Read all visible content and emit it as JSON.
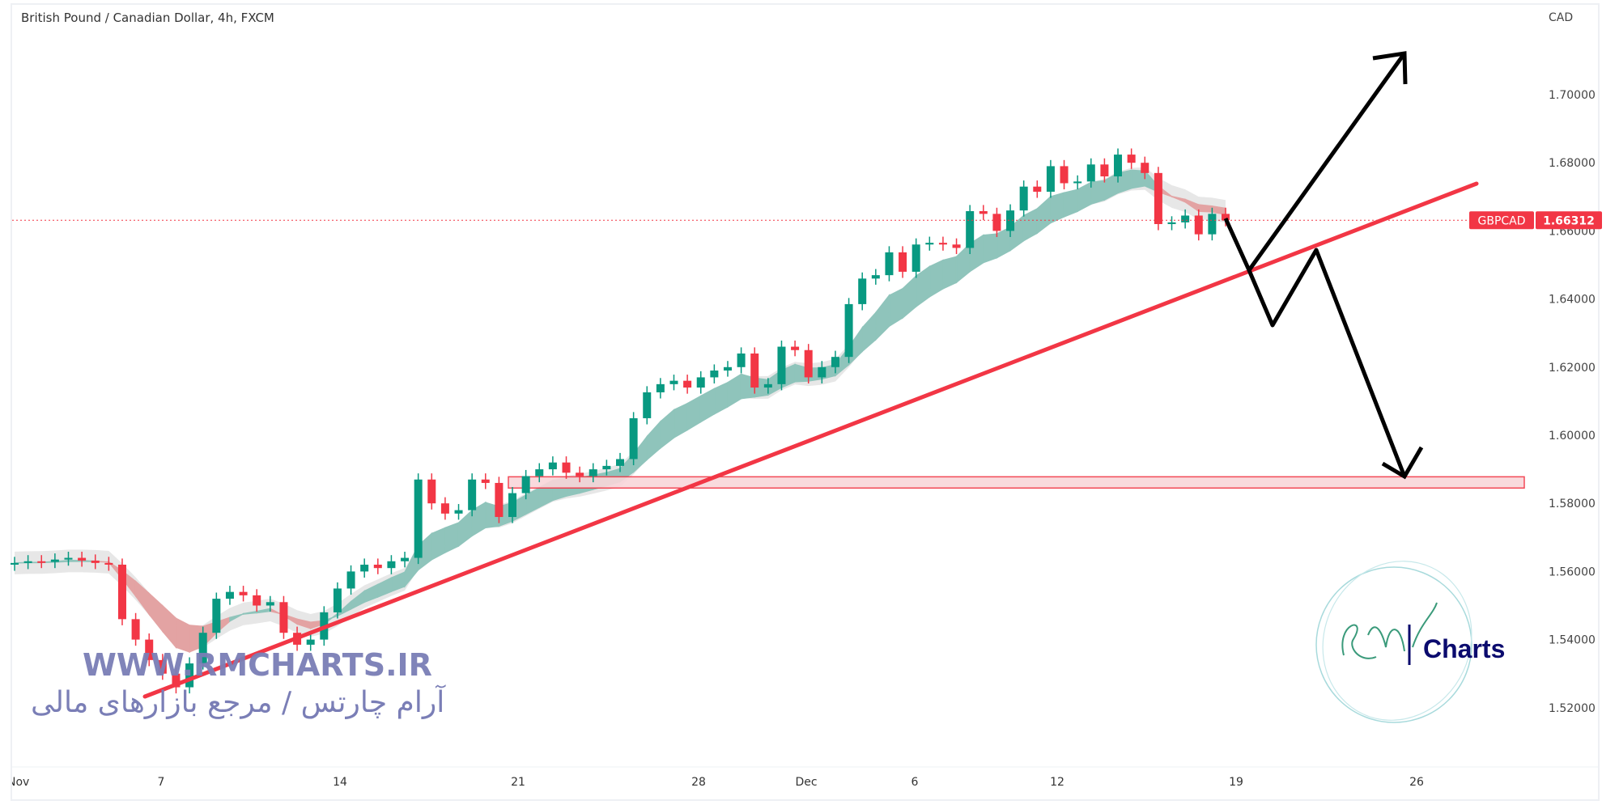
{
  "header": {
    "title": "British Pound / Canadian Dollar, 4h, FXCM"
  },
  "watermark": {
    "url": "WWW.RMCHARTS.IR",
    "persian": "آرام چارتس / مرجع بازارهای مالی",
    "logo_text": "Charts",
    "logo_script": "RM"
  },
  "colors": {
    "up": "#089981",
    "down": "#f23645",
    "trendline": "#f23645",
    "zone_fill": "#f9d6da",
    "arrows": "#000000",
    "band_up": "#8fc4bb",
    "band_down": "#e3a3a3",
    "band_grey": "#e4e4e4"
  },
  "chart_data": {
    "type": "candlestick",
    "symbol": "GBPCAD",
    "currency": "CAD",
    "last_price": "1.66312",
    "y_ticks": [
      "1.70000",
      "1.68000",
      "1.66000",
      "1.64000",
      "1.62000",
      "1.60000",
      "1.58000",
      "1.56000",
      "1.54000",
      "1.52000"
    ],
    "ylim": [
      1.505,
      1.724
    ],
    "x_ticks": [
      "Nov",
      "7",
      "14",
      "21",
      "28",
      "Dec",
      "6",
      "12",
      "19",
      "26"
    ],
    "closes": [
      1.5625,
      1.563,
      1.5628,
      1.5635,
      1.564,
      1.5632,
      1.5625,
      1.562,
      1.546,
      1.54,
      1.534,
      1.53,
      1.526,
      1.533,
      1.542,
      1.552,
      1.554,
      1.553,
      1.55,
      1.551,
      1.542,
      1.5385,
      1.54,
      1.548,
      1.555,
      1.56,
      1.562,
      1.561,
      1.563,
      1.564,
      1.587,
      1.58,
      1.577,
      1.578,
      1.587,
      1.586,
      1.576,
      1.583,
      1.588,
      1.59,
      1.592,
      1.589,
      1.588,
      1.59,
      1.591,
      1.593,
      1.605,
      1.6126,
      1.615,
      1.616,
      1.614,
      1.617,
      1.619,
      1.62,
      1.624,
      1.614,
      1.615,
      1.626,
      1.625,
      1.617,
      1.62,
      1.623,
      1.6385,
      1.646,
      1.647,
      1.6537,
      1.648,
      1.656,
      1.6565,
      1.656,
      1.655,
      1.6658,
      1.665,
      1.66,
      1.666,
      1.673,
      1.6715,
      1.679,
      1.674,
      1.6745,
      1.6795,
      1.676,
      1.6824,
      1.68,
      1.677,
      1.662,
      1.6625,
      1.6645,
      1.659,
      1.665,
      1.66312
    ],
    "support_zone": [
      1.5845,
      1.5878
    ],
    "trendline": {
      "from": {
        "date": "Nov 6",
        "price": 1.5205
      },
      "to": {
        "date": "Dec 28",
        "price": 1.6737
      }
    },
    "projection_up_target": 1.712,
    "projection_down_target": 1.5855
  }
}
